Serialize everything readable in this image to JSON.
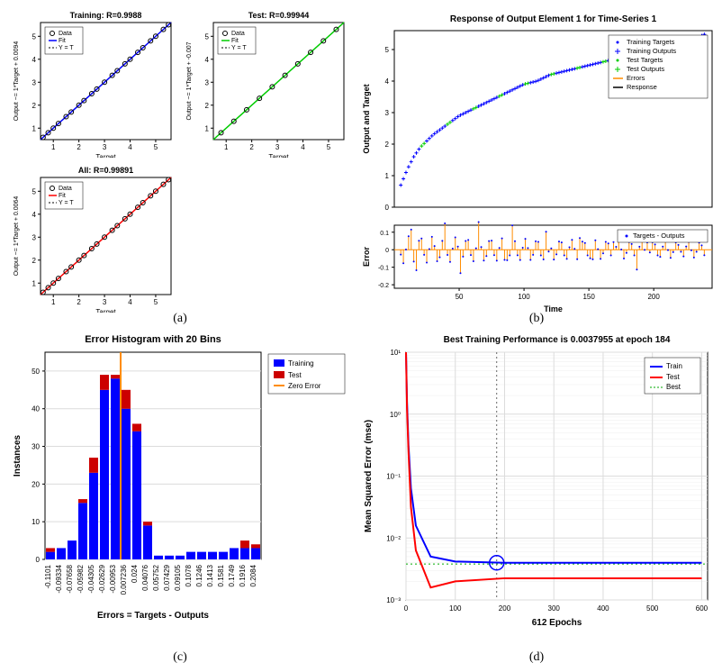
{
  "panel_a": {
    "label": "(a)",
    "subs": [
      {
        "title": "Training: R=0.9988",
        "ylabel": "Output ~= 1*Target + 0.0094",
        "xlabel": "Target",
        "fit_color": "#0000ff",
        "data_color": "#000000",
        "legend": [
          "Data",
          "Fit",
          "Y = T"
        ],
        "xticks": [
          1,
          2,
          3,
          4,
          5
        ],
        "points_x": [
          0.6,
          0.8,
          1.0,
          1.2,
          1.5,
          1.7,
          2.0,
          2.2,
          2.5,
          2.7,
          3.0,
          3.3,
          3.5,
          3.8,
          4.0,
          4.3,
          4.5,
          4.8,
          5.0,
          5.3,
          5.5
        ],
        "points_y": [
          0.6,
          0.8,
          1.0,
          1.2,
          1.5,
          1.7,
          2.0,
          2.2,
          2.5,
          2.7,
          3.0,
          3.3,
          3.5,
          3.8,
          4.0,
          4.3,
          4.5,
          4.8,
          5.0,
          5.3,
          5.5
        ]
      },
      {
        "title": "Test: R=0.99944",
        "ylabel": "Output ~= 1*Target + -0.007",
        "xlabel": "Target",
        "fit_color": "#00cc00",
        "data_color": "#000000",
        "legend": [
          "Data",
          "Fit",
          "Y = T"
        ],
        "xticks": [
          1,
          2,
          3,
          4,
          5
        ],
        "points_x": [
          0.8,
          1.3,
          1.8,
          2.3,
          2.8,
          3.3,
          3.8,
          4.3,
          4.8,
          5.3
        ],
        "points_y": [
          0.8,
          1.3,
          1.8,
          2.3,
          2.8,
          3.3,
          3.8,
          4.3,
          4.8,
          5.3
        ]
      },
      {
        "title": "All: R=0.99891",
        "ylabel": "Output ~= 1*Target + 0.0064",
        "xlabel": "Target",
        "fit_color": "#ff0000",
        "data_color": "#000000",
        "legend": [
          "Data",
          "Fit",
          "Y = T"
        ],
        "xticks": [
          1,
          2,
          3,
          4,
          5
        ],
        "points_x": [
          0.6,
          0.8,
          1.0,
          1.2,
          1.5,
          1.7,
          2.0,
          2.2,
          2.5,
          2.7,
          3.0,
          3.3,
          3.5,
          3.8,
          4.0,
          4.3,
          4.5,
          4.8,
          5.0,
          5.3,
          5.5
        ],
        "points_y": [
          0.6,
          0.8,
          1.0,
          1.2,
          1.5,
          1.7,
          2.0,
          2.2,
          2.5,
          2.7,
          3.0,
          3.3,
          3.5,
          3.8,
          4.0,
          4.3,
          4.5,
          4.8,
          5.0,
          5.3,
          5.5
        ]
      }
    ]
  },
  "panel_b": {
    "label": "(b)",
    "top_title": "Response of Output Element 1 for Time-Series 1",
    "ylabel_top": "Output and Target",
    "yticks_top": [
      0,
      1,
      2,
      3,
      4,
      5
    ],
    "xticks": [
      50,
      100,
      150,
      200
    ],
    "legend_top": [
      "Training Targets",
      "Training Outputs",
      "Test Targets",
      "Test Outputs",
      "Errors",
      "Response"
    ],
    "legend_colors": [
      "#0000ff",
      "#0000ff",
      "#00cc00",
      "#00cc00",
      "#ff8c00",
      "#000000"
    ],
    "legend_markers": [
      "dot",
      "plus",
      "dot",
      "plus",
      "line",
      "line"
    ],
    "curve_top_x": [
      5,
      10,
      15,
      20,
      25,
      30,
      40,
      50,
      60,
      70,
      80,
      90,
      100,
      110,
      120,
      130,
      140,
      150,
      160,
      170,
      180,
      190,
      200,
      210,
      220,
      230,
      240
    ],
    "curve_top_y": [
      0.7,
      1.2,
      1.6,
      1.9,
      2.1,
      2.3,
      2.6,
      2.9,
      3.1,
      3.3,
      3.5,
      3.7,
      3.9,
      4.0,
      4.2,
      4.3,
      4.4,
      4.5,
      4.6,
      4.7,
      4.8,
      4.9,
      5.0,
      5.1,
      5.2,
      5.3,
      5.5
    ],
    "ylabel_bot": "Error",
    "yticks_bot": [
      -0.2,
      -0.1,
      0,
      0.1
    ],
    "legend_bot": "Targets - Outputs",
    "error_color": "#ff8c00",
    "error_x": [
      5,
      10,
      15,
      20,
      25,
      30,
      40,
      50,
      60,
      70,
      80,
      90,
      100,
      110,
      120,
      130,
      140,
      150,
      160,
      170,
      180,
      190,
      200,
      210,
      220,
      230,
      240
    ],
    "error_y": [
      0.08,
      -0.05,
      0.1,
      -0.08,
      0.06,
      -0.04,
      0.09,
      -0.06,
      0.05,
      -0.03,
      0.08,
      -0.05,
      0.04,
      -0.02,
      0.07,
      -0.04,
      0.03,
      -0.02,
      0.06,
      -0.03,
      0.02,
      -0.01,
      0.05,
      -0.02,
      0.01,
      -0.01,
      0.04
    ]
  },
  "panel_c": {
    "label": "(c)",
    "title": "Error Histogram with 20 Bins",
    "ylabel": "Instances",
    "xlabel": "Errors = Targets - Outputs",
    "yticks": [
      0,
      10,
      20,
      30,
      40,
      50
    ],
    "bin_labels": [
      "-0.1101",
      "-0.09334",
      "-0.07658",
      "-0.05982",
      "-0.04305",
      "-0.02629",
      "-0.00953",
      "0.007236",
      "0.024",
      "0.04076",
      "0.05752",
      "0.07429",
      "0.09105",
      "0.1078",
      "0.1246",
      "0.1413",
      "0.1581",
      "0.1749",
      "0.1916",
      "0.2084"
    ],
    "training_vals": [
      2,
      3,
      5,
      15,
      23,
      45,
      48,
      40,
      34,
      9,
      1,
      1,
      1,
      2,
      2,
      2,
      2,
      3,
      3,
      3
    ],
    "test_vals": [
      1,
      0,
      0,
      1,
      4,
      4,
      1,
      5,
      2,
      1,
      0,
      0,
      0,
      0,
      0,
      0,
      0,
      0,
      2,
      1
    ],
    "train_color": "#0000ff",
    "test_color": "#cc0000",
    "zero_color": "#ff8c00",
    "zero_bin_index": 7,
    "legend": [
      "Training",
      "Test",
      "Zero Error"
    ]
  },
  "panel_d": {
    "label": "(d)",
    "title": "Best Training Performance is 0.0037955 at epoch 184",
    "ylabel": "Mean Squared Error  (mse)",
    "xlabel": "612 Epochs",
    "xticks": [
      0,
      100,
      200,
      300,
      400,
      500,
      600
    ],
    "yticks_log": [
      -3,
      -2,
      -1,
      0,
      1
    ],
    "ytick_labels": [
      "10⁻³",
      "10⁻²",
      "10⁻¹",
      "10⁰",
      "10¹"
    ],
    "train_color": "#0000ff",
    "test_color": "#ff0000",
    "best_color": "#00aa00",
    "best_epoch": 184,
    "legend": [
      "Train",
      "Test",
      "Best"
    ],
    "train_x": [
      0,
      2,
      5,
      10,
      20,
      50,
      100,
      200,
      300,
      400,
      500,
      600
    ],
    "train_y_log": [
      1,
      0.2,
      -0.5,
      -1.2,
      -1.8,
      -2.3,
      -2.38,
      -2.4,
      -2.4,
      -2.4,
      -2.4,
      -2.4
    ],
    "test_x": [
      0,
      2,
      5,
      10,
      20,
      50,
      100,
      200,
      300,
      400,
      500,
      600
    ],
    "test_y_log": [
      1,
      0.1,
      -0.6,
      -1.5,
      -2.2,
      -2.8,
      -2.7,
      -2.65,
      -2.65,
      -2.65,
      -2.65,
      -2.65
    ]
  }
}
